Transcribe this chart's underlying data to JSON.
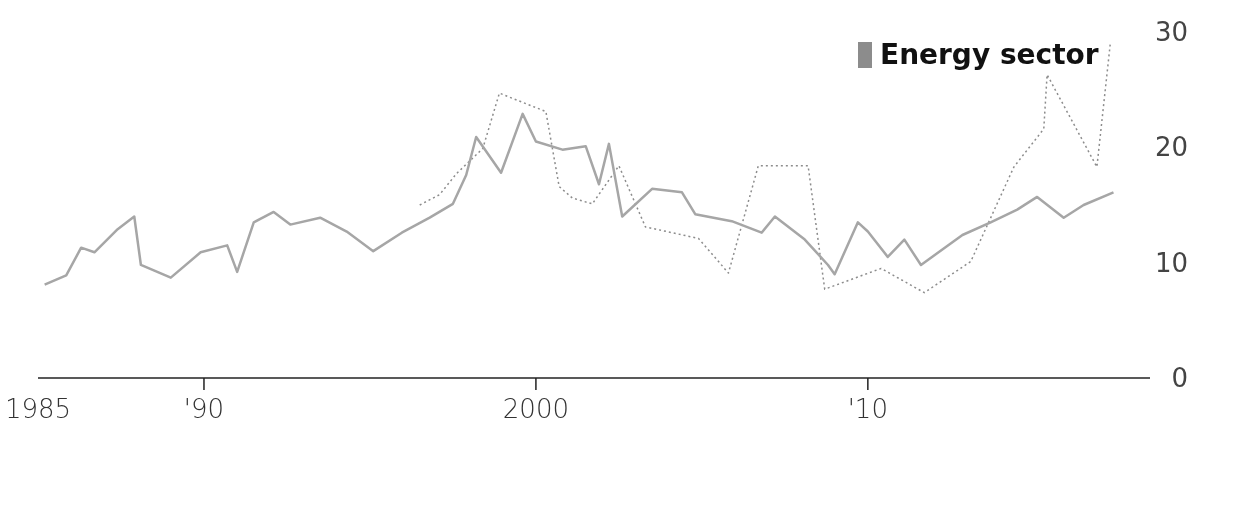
{
  "chart_data": {
    "type": "line",
    "legend": "top right",
    "xlim": [
      1985,
      2018.5
    ],
    "ylim": [
      0,
      30
    ],
    "yticks": [
      0,
      10,
      20,
      30
    ],
    "xticks": [
      {
        "value": 1985,
        "label": "1985"
      },
      {
        "value": 1990,
        "label": "'90"
      },
      2000,
      {
        "value": 2010,
        "label": "'10"
      }
    ],
    "series": [
      {
        "name": "Energy sector",
        "color": "#8c8c8c",
        "line_style": "dotted",
        "x": [
          1996.5,
          1997.1,
          1997.6,
          1998.4,
          1998.9,
          2000.3,
          2000.7,
          2001.1,
          2001.7,
          2002.5,
          2003.3,
          2004.9,
          2005.8,
          2006.7,
          2008.2,
          2008.7,
          2010.4,
          2011.7,
          2013.1,
          2014.4,
          2015.3,
          2015.4,
          2016.9,
          2017.3
        ],
        "values": [
          15,
          15.9,
          17.7,
          19.9,
          24.7,
          23.1,
          16.6,
          15.6,
          15.1,
          18.4,
          13.1,
          12.1,
          9.1,
          18.4,
          18.4,
          7.7,
          9.5,
          7.4,
          10.1,
          18.3,
          21.6,
          26.3,
          18.3,
          28.9
        ]
      },
      {
        "color": "#a6a6a6",
        "line_style": "solid",
        "x": [
          1985.2,
          1985.85,
          1986.3,
          1986.7,
          1987.4,
          1987.9,
          1988.1,
          1989,
          1989.9,
          1990.7,
          1991,
          1991.5,
          1992.1,
          1992.6,
          1993.5,
          1994.3,
          1995.1,
          1995.96,
          1996.8,
          1997.5,
          1997.9,
          1998.2,
          1998.95,
          1999.6,
          2000,
          2000.8,
          2001.5,
          2001.9,
          2002.2,
          2002.6,
          2003.5,
          2004.4,
          2004.8,
          2005.9,
          2006.8,
          2007.2,
          2008.1,
          2008.8,
          2009,
          2009.7,
          2010,
          2010.6,
          2011.1,
          2011.6,
          2012.85,
          2013.7,
          2014.5,
          2015.1,
          2015.9,
          2016.5,
          2017.4
        ],
        "values": [
          8.1,
          8.9,
          11.3,
          10.9,
          12.9,
          14,
          9.8,
          8.7,
          10.9,
          11.5,
          9.2,
          13.5,
          14.4,
          13.3,
          13.9,
          12.7,
          11,
          12.6,
          13.9,
          15.1,
          17.6,
          20.9,
          17.8,
          22.9,
          20.5,
          19.8,
          20.1,
          16.8,
          20.3,
          14,
          16.4,
          16.1,
          14.2,
          13.6,
          12.6,
          14,
          12,
          9.8,
          9,
          13.5,
          12.7,
          10.5,
          12,
          9.8,
          12.4,
          13.5,
          14.6,
          15.7,
          13.9,
          15,
          16.1
        ]
      }
    ]
  }
}
